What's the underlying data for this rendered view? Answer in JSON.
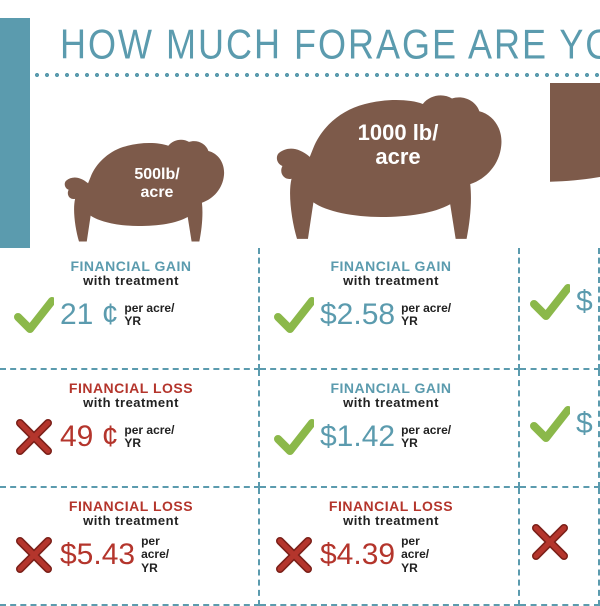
{
  "title": "HOW MUCH FORAGE ARE YOU PR",
  "colors": {
    "teal": "#5b9bae",
    "red": "#b4352c",
    "green": "#8bb84a",
    "brown": "#7d5a4a",
    "text": "#222222",
    "bg": "#ffffff"
  },
  "cows": [
    {
      "label_line1": "500lb/",
      "label_line2": "acre",
      "scale": 0.65
    },
    {
      "label_line1": "1000 lb/",
      "label_line2": "acre",
      "scale": 1.0
    }
  ],
  "heading_gain": "FINANCIAL GAIN",
  "heading_loss": "FINANCIAL LOSS",
  "heading_sub": "with treatment",
  "per_label_1": "per acre/",
  "per_label_2": "YR",
  "per_label_stack_1": "per",
  "per_label_stack_2": "acre/",
  "per_label_stack_3": "YR",
  "cells": [
    [
      {
        "type": "gain",
        "amount": "21 ¢"
      },
      {
        "type": "gain",
        "amount": "$2.58"
      },
      {
        "type": "gain",
        "amount": "$"
      }
    ],
    [
      {
        "type": "loss",
        "amount": "49 ¢"
      },
      {
        "type": "gain",
        "amount": "$1.42"
      },
      {
        "type": "gain",
        "amount": "$"
      }
    ],
    [
      {
        "type": "loss",
        "amount": "$5.43",
        "stack": true
      },
      {
        "type": "loss",
        "amount": "$4.39",
        "stack": true
      },
      {
        "type": "loss",
        "amount": ""
      }
    ]
  ]
}
